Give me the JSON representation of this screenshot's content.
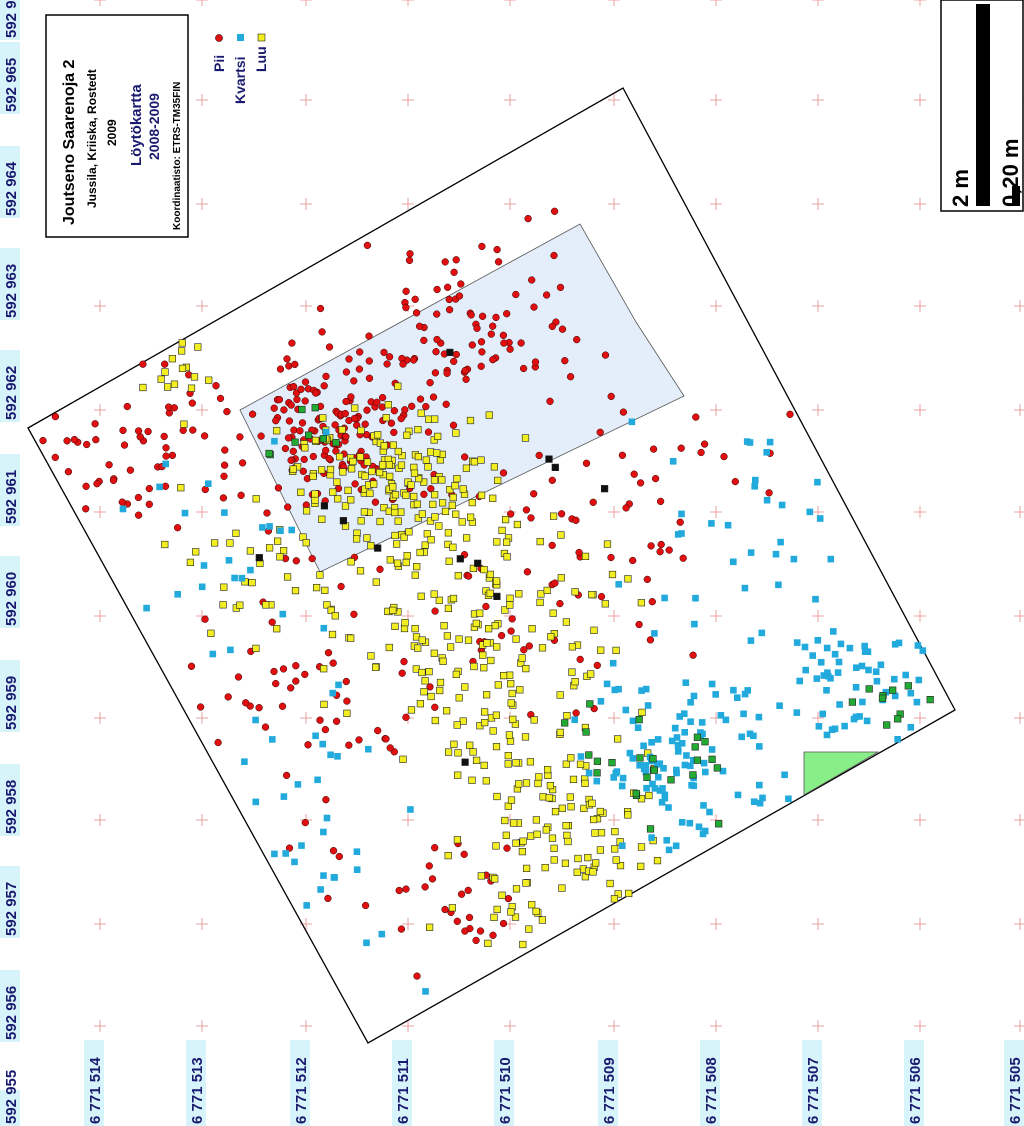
{
  "title_box": {
    "title": "Joutseno Saarenoja 2",
    "authors": "Jussila, Kriiska, Rostedt",
    "year": "2009",
    "map_name": "Löytökartta",
    "years": "2008-2009",
    "crs": "Koordinaatisto: ETRS-TM35FIN"
  },
  "legend": [
    {
      "label": "Pii",
      "color": "#e01010",
      "shape": "circle"
    },
    {
      "label": "Kvartsi",
      "color": "#22aadd",
      "shape": "square"
    },
    {
      "label": "Luu",
      "color": "#f2ee22",
      "shape": "square"
    }
  ],
  "scale_bar": {
    "label_long": "2 m",
    "label_short": "0,20 m"
  },
  "grid": {
    "easting_labels": [
      "592 955",
      "592 956",
      "592 957",
      "592 958",
      "592 959",
      "592 960",
      "592 961",
      "592 962",
      "592 963",
      "592 964",
      "592 965",
      "592 9"
    ],
    "northing_labels": [
      "6 771 514",
      "6 771 513",
      "6 771 512",
      "6 771 511",
      "6 771 510",
      "6 771 509",
      "6 771 508",
      "6 771 507",
      "6 771 506",
      "6 771 505"
    ]
  },
  "colors": {
    "pii": "#e01010",
    "kvartsi": "#22aadd",
    "luu": "#f2ee22",
    "other_green": "#22aa33",
    "other_black": "#111111",
    "excavated_area": "#e4eefa",
    "green_area": "#88ee88",
    "grid_cross": "#e8a0a0",
    "label_bg": "#d8f4fb",
    "title_color": "#1a1a6e"
  }
}
